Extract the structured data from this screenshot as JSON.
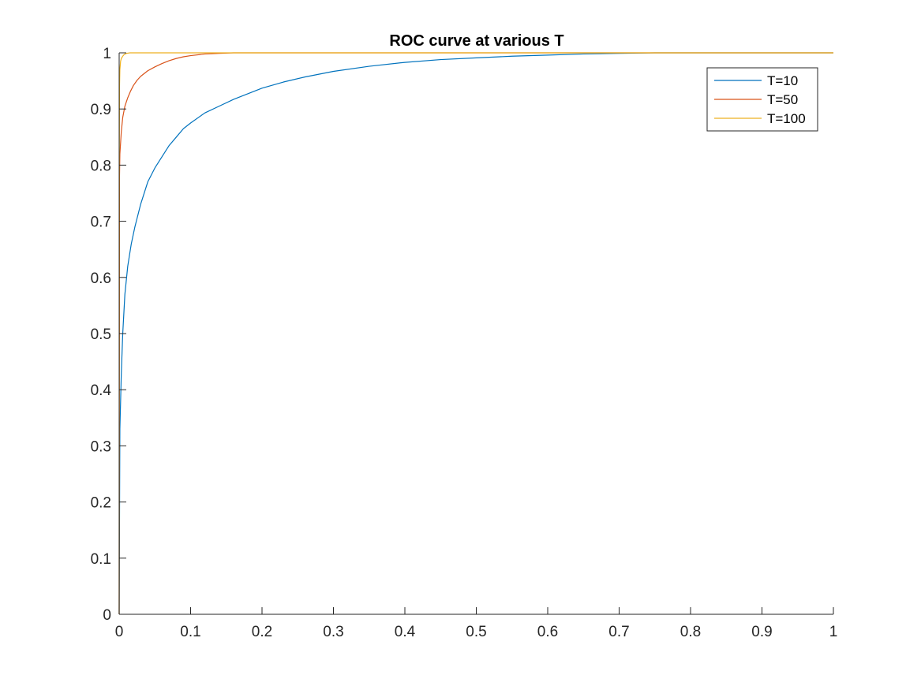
{
  "chart_data": {
    "type": "line",
    "title": "ROC curve at various T",
    "xlabel": "",
    "ylabel": "",
    "xlim": [
      0,
      1
    ],
    "ylim": [
      0,
      1
    ],
    "xticks": [
      "0",
      "0.1",
      "0.2",
      "0.3",
      "0.4",
      "0.5",
      "0.6",
      "0.7",
      "0.8",
      "0.9",
      "1"
    ],
    "yticks": [
      "0",
      "0.1",
      "0.2",
      "0.3",
      "0.4",
      "0.5",
      "0.6",
      "0.7",
      "0.8",
      "0.9",
      "1"
    ],
    "grid": false,
    "legend_position": "top-right",
    "series": [
      {
        "name": "T=10",
        "color": "#0072BD",
        "x": [
          0,
          0.001,
          0.003,
          0.005,
          0.008,
          0.012,
          0.017,
          0.022,
          0.03,
          0.04,
          0.05,
          0.06,
          0.07,
          0.08,
          0.09,
          0.1,
          0.12,
          0.14,
          0.16,
          0.18,
          0.2,
          0.23,
          0.26,
          0.3,
          0.35,
          0.4,
          0.45,
          0.5,
          0.55,
          0.6,
          0.65,
          0.7,
          0.75,
          0.8,
          0.9,
          1.0
        ],
        "y": [
          0,
          0.33,
          0.43,
          0.5,
          0.57,
          0.62,
          0.66,
          0.69,
          0.73,
          0.77,
          0.795,
          0.815,
          0.835,
          0.85,
          0.865,
          0.875,
          0.893,
          0.905,
          0.917,
          0.927,
          0.937,
          0.948,
          0.957,
          0.967,
          0.976,
          0.983,
          0.988,
          0.991,
          0.994,
          0.996,
          0.998,
          0.999,
          1.0,
          1.0,
          1.0,
          1.0
        ]
      },
      {
        "name": "T=50",
        "color": "#D95319",
        "x": [
          0,
          0.0005,
          0.001,
          0.003,
          0.005,
          0.008,
          0.012,
          0.016,
          0.02,
          0.025,
          0.03,
          0.04,
          0.05,
          0.06,
          0.07,
          0.08,
          0.09,
          0.1,
          0.12,
          0.14,
          0.16,
          0.2,
          0.3,
          0.5,
          0.7,
          1.0
        ],
        "y": [
          0,
          0.78,
          0.82,
          0.86,
          0.885,
          0.905,
          0.92,
          0.932,
          0.942,
          0.951,
          0.958,
          0.968,
          0.975,
          0.981,
          0.986,
          0.99,
          0.993,
          0.995,
          0.998,
          0.999,
          1.0,
          1.0,
          1.0,
          1.0,
          1.0,
          1.0
        ]
      },
      {
        "name": "T=100",
        "color": "#EDB120",
        "x": [
          0,
          0.0002,
          0.0005,
          0.001,
          0.002,
          0.003,
          0.005,
          0.007,
          0.01,
          0.015,
          0.02,
          0.1,
          0.5,
          1.0
        ],
        "y": [
          0,
          0.8,
          0.94,
          0.97,
          0.985,
          0.99,
          0.994,
          0.997,
          0.999,
          1.0,
          1.0,
          1.0,
          1.0,
          1.0
        ]
      }
    ]
  }
}
